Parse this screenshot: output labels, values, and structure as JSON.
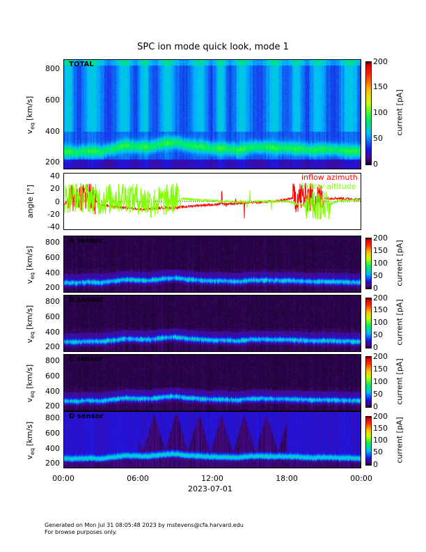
{
  "title": "SPC ion mode quick look, mode 1",
  "x_tick_labels": [
    "00:00",
    "06:00",
    "12:00",
    "18:00",
    "00:00"
  ],
  "x_date_label": "2023-07-01",
  "footer": {
    "line1": "Generated on Mon Jul 31 08:05:48 2023 by mstevens@cfa.harvard.edu",
    "line2": "For browse purposes only."
  },
  "colors": {
    "azimuth": "#ff0000",
    "elevation": "#80ff00"
  },
  "chart_data": [
    {
      "type": "heatmap",
      "label": "TOTAL",
      "ylabel_main": "v",
      "ylabel_sub": "eq",
      "ylabel_unit": "[km/s]",
      "ylim": [
        155,
        860
      ],
      "yticks": [
        "200",
        "400",
        "600",
        "800"
      ],
      "colorbar": {
        "label": "current [pA]",
        "range": [
          0,
          200
        ],
        "ticks": [
          "0",
          "50",
          "100",
          "150",
          "200"
        ]
      },
      "band_center_kms_hourly": [
        270,
        265,
        275,
        270,
        290,
        310,
        300,
        300,
        320,
        330,
        310,
        300,
        290,
        290,
        280,
        300,
        300,
        295,
        295,
        290,
        280,
        285,
        280,
        275,
        270
      ]
    },
    {
      "type": "line",
      "ylabel": "angle [°]",
      "ylim": [
        -45,
        45
      ],
      "yticks": [
        "40",
        "20",
        "0",
        "-20",
        "-40"
      ],
      "legend": [
        "inflow azimuth",
        "inflow altitude"
      ],
      "series": [
        {
          "name": "inflow azimuth",
          "hourly": [
            -5,
            10,
            8,
            -5,
            -8,
            -10,
            -12,
            -12,
            -10,
            -10,
            -8,
            -6,
            -5,
            -4,
            -3,
            -2,
            -1,
            0,
            3,
            8,
            6,
            5,
            5,
            4,
            3
          ]
        },
        {
          "name": "inflow altitude",
          "hourly": [
            5,
            8,
            6,
            2,
            5,
            8,
            4,
            -2,
            0,
            6,
            4,
            2,
            1,
            0,
            0,
            -1,
            0,
            0,
            0,
            -5,
            -10,
            -8,
            0,
            2,
            2
          ]
        }
      ]
    },
    {
      "type": "heatmap",
      "label": "A sensor",
      "ylabel_main": "v",
      "ylabel_sub": "eq",
      "ylabel_unit": "[km/s]",
      "ylim": [
        135,
        890
      ],
      "yticks": [
        "200",
        "400",
        "600",
        "800"
      ],
      "colorbar": {
        "label": "current [pA]",
        "range": [
          0,
          200
        ],
        "ticks": [
          "0",
          "50",
          "100",
          "150",
          "200"
        ]
      }
    },
    {
      "type": "heatmap",
      "label": "B sensor",
      "ylabel_main": "v",
      "ylabel_sub": "eq",
      "ylabel_unit": "[km/s]",
      "ylim": [
        135,
        890
      ],
      "yticks": [
        "200",
        "400",
        "600",
        "800"
      ],
      "colorbar": {
        "label": "current [pA]",
        "range": [
          0,
          200
        ],
        "ticks": [
          "0",
          "50",
          "100",
          "150",
          "200"
        ]
      }
    },
    {
      "type": "heatmap",
      "label": "C sensor",
      "ylabel_main": "v",
      "ylabel_sub": "eq",
      "ylabel_unit": "[km/s]",
      "ylim": [
        135,
        890
      ],
      "yticks": [
        "200",
        "400",
        "600",
        "800"
      ],
      "colorbar": {
        "label": "current [pA]",
        "range": [
          0,
          200
        ],
        "ticks": [
          "0",
          "50",
          "100",
          "150",
          "200"
        ]
      }
    },
    {
      "type": "heatmap",
      "label": "D sensor",
      "ylabel_main": "v",
      "ylabel_sub": "eq",
      "ylabel_unit": "[km/s]",
      "ylim": [
        135,
        890
      ],
      "yticks": [
        "200",
        "400",
        "600",
        "800"
      ],
      "colorbar": {
        "label": "current [pA]",
        "range": [
          0,
          200
        ],
        "ticks": [
          "0",
          "50",
          "100",
          "150",
          "200"
        ]
      }
    }
  ]
}
